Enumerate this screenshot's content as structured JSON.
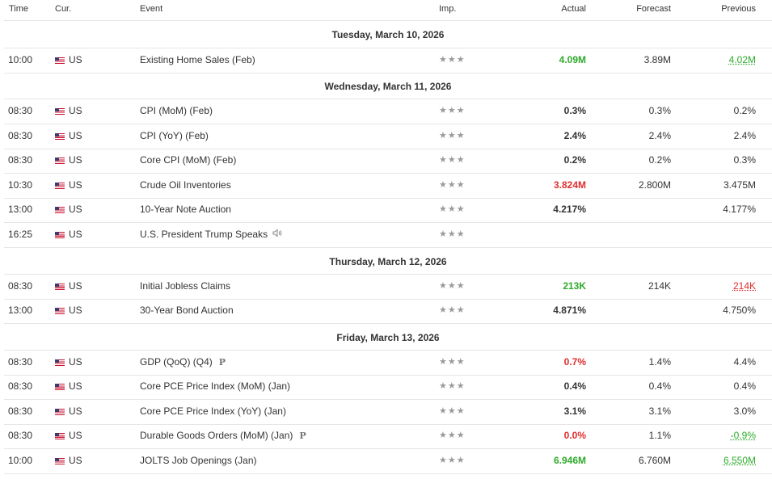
{
  "header": {
    "time": "Time",
    "currency": "Cur.",
    "event": "Event",
    "importance": "Imp.",
    "actual": "Actual",
    "forecast": "Forecast",
    "previous": "Previous"
  },
  "colors": {
    "positive": "#2eaa2a",
    "negative": "#e02d2d",
    "stars": "#9a9a9a"
  },
  "stars_glyph": "★★★",
  "days": [
    {
      "label": "Tuesday, March 10, 2026",
      "events": [
        {
          "time": "10:00",
          "currency": "US",
          "event": "Existing Home Sales (Feb)",
          "actual": "4.09M",
          "actual_color": "green",
          "forecast": "3.89M",
          "previous": "4.02M",
          "previous_color": "green",
          "previous_revised": true
        }
      ]
    },
    {
      "label": "Wednesday, March 11, 2026",
      "events": [
        {
          "time": "08:30",
          "currency": "US",
          "event": "CPI (MoM) (Feb)",
          "actual": "0.3%",
          "forecast": "0.3%",
          "previous": "0.2%"
        },
        {
          "time": "08:30",
          "currency": "US",
          "event": "CPI (YoY) (Feb)",
          "actual": "2.4%",
          "forecast": "2.4%",
          "previous": "2.4%"
        },
        {
          "time": "08:30",
          "currency": "US",
          "event": "Core CPI (MoM) (Feb)",
          "actual": "0.2%",
          "forecast": "0.2%",
          "previous": "0.3%"
        },
        {
          "time": "10:30",
          "currency": "US",
          "event": "Crude Oil Inventories",
          "actual": "3.824M",
          "actual_color": "red",
          "forecast": "2.800M",
          "previous": "3.475M"
        },
        {
          "time": "13:00",
          "currency": "US",
          "event": "10-Year Note Auction",
          "actual": "4.217%",
          "forecast": "",
          "previous": "4.177%"
        },
        {
          "time": "16:25",
          "currency": "US",
          "event": "U.S. President Trump Speaks",
          "speech": true,
          "actual": "",
          "forecast": "",
          "previous": ""
        }
      ]
    },
    {
      "label": "Thursday, March 12, 2026",
      "events": [
        {
          "time": "08:30",
          "currency": "US",
          "event": "Initial Jobless Claims",
          "actual": "213K",
          "actual_color": "green",
          "forecast": "214K",
          "previous": "214K",
          "previous_color": "red",
          "previous_revised": true
        },
        {
          "time": "13:00",
          "currency": "US",
          "event": "30-Year Bond Auction",
          "actual": "4.871%",
          "forecast": "",
          "previous": "4.750%"
        }
      ]
    },
    {
      "label": "Friday, March 13, 2026",
      "events": [
        {
          "time": "08:30",
          "currency": "US",
          "event": "GDP (QoQ) (Q4)",
          "preliminary": "P",
          "actual": "0.7%",
          "actual_color": "red",
          "forecast": "1.4%",
          "previous": "4.4%"
        },
        {
          "time": "08:30",
          "currency": "US",
          "event": "Core PCE Price Index (MoM) (Jan)",
          "actual": "0.4%",
          "forecast": "0.4%",
          "previous": "0.4%"
        },
        {
          "time": "08:30",
          "currency": "US",
          "event": "Core PCE Price Index (YoY) (Jan)",
          "actual": "3.1%",
          "forecast": "3.1%",
          "previous": "3.0%"
        },
        {
          "time": "08:30",
          "currency": "US",
          "event": "Durable Goods Orders (MoM) (Jan)",
          "preliminary": "P",
          "actual": "0.0%",
          "actual_color": "red",
          "forecast": "1.1%",
          "previous": "-0.9%",
          "previous_color": "green",
          "previous_revised": true
        },
        {
          "time": "10:00",
          "currency": "US",
          "event": "JOLTS Job Openings (Jan)",
          "actual": "6.946M",
          "actual_color": "green",
          "forecast": "6.760M",
          "previous": "6.550M",
          "previous_color": "green",
          "previous_revised": true
        }
      ]
    }
  ]
}
